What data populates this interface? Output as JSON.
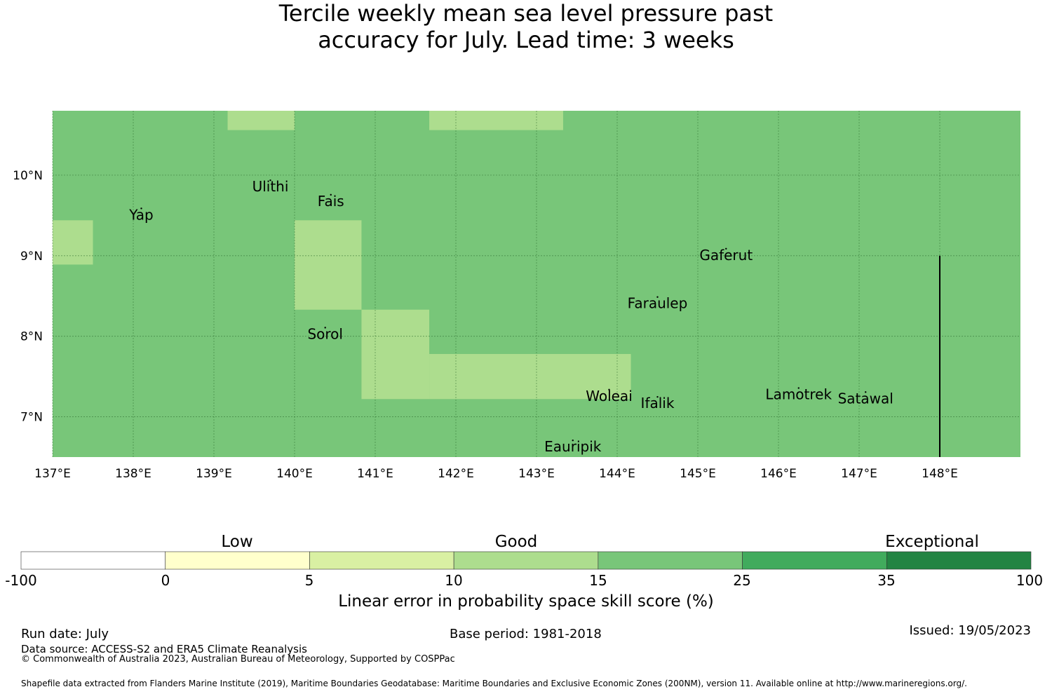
{
  "title_lines": [
    "Tercile weekly mean sea level pressure past",
    "accuracy for July. Lead time: 3 weeks"
  ],
  "map": {
    "lat_labels": [
      "10°N",
      "9°N",
      "8°N",
      "7°N"
    ],
    "lon_labels": [
      "137°E",
      "138°E",
      "139°E",
      "140°E",
      "141°E",
      "142°E",
      "143°E",
      "144°E",
      "145°E",
      "146°E",
      "147°E",
      "148°E"
    ],
    "extent": {
      "lon_min": 137.0,
      "lon_max": 149.0,
      "lat_min": 6.5,
      "lat_max": 10.8
    },
    "gridlines_lon": [
      137,
      138,
      139,
      140,
      141,
      142,
      143,
      144,
      145,
      146,
      147,
      148
    ],
    "gridlines_lat": [
      7,
      8,
      9,
      10
    ],
    "base_color": "#78c679",
    "patch_color": "#addd8e",
    "grid_color": "#2b6a2b",
    "patches": [
      {
        "lon": [
          139.17,
          140.0
        ],
        "lat": [
          10.56,
          10.8
        ]
      },
      {
        "lon": [
          141.67,
          143.33
        ],
        "lat": [
          10.56,
          10.8
        ]
      },
      {
        "lon": [
          137.0,
          137.5
        ],
        "lat": [
          8.89,
          9.44
        ]
      },
      {
        "lon": [
          140.0,
          140.83
        ],
        "lat": [
          8.33,
          9.44
        ]
      },
      {
        "lon": [
          140.83,
          141.67
        ],
        "lat": [
          7.22,
          8.33
        ]
      },
      {
        "lon": [
          141.67,
          144.17
        ],
        "lat": [
          7.22,
          7.78
        ]
      }
    ],
    "boundary_line": {
      "lon": 148.0,
      "lat": [
        6.5,
        9.0
      ]
    },
    "islands": [
      {
        "name": "Yap",
        "lon": 138.1,
        "lat": 9.5
      },
      {
        "name": "Ulithi",
        "lon": 139.7,
        "lat": 9.85
      },
      {
        "name": "Fais",
        "lon": 140.45,
        "lat": 9.67
      },
      {
        "name": "Gaferut",
        "lon": 145.35,
        "lat": 9.0
      },
      {
        "name": "Faraulep",
        "lon": 144.5,
        "lat": 8.4
      },
      {
        "name": "Sorol",
        "lon": 140.38,
        "lat": 8.02
      },
      {
        "name": "Woleai",
        "lon": 143.9,
        "lat": 7.25
      },
      {
        "name": "Ifalik",
        "lon": 144.5,
        "lat": 7.16
      },
      {
        "name": "Lamotrek",
        "lon": 146.25,
        "lat": 7.27
      },
      {
        "name": "Satawal",
        "lon": 147.08,
        "lat": 7.22
      },
      {
        "name": "Eauripik",
        "lon": 143.45,
        "lat": 6.62
      }
    ]
  },
  "colorbar": {
    "categories": [
      "Low",
      "Good",
      "Exceptional"
    ],
    "tick_labels": [
      "-100",
      "0",
      "5",
      "10",
      "15",
      "25",
      "35",
      "100"
    ],
    "colors": [
      "#ffffff",
      "#ffffcc",
      "#d9f0a3",
      "#addd8e",
      "#78c679",
      "#41ab5d",
      "#238443"
    ],
    "label": "Linear error in probability space skill score (%)"
  },
  "footer": {
    "run_date": "Run date: July",
    "base_period": "Base period: 1981-2018",
    "issued": "Issued: 19/05/2023",
    "data_source": "Data source: ACCESS-S2 and ERA5 Climate Reanalysis",
    "copyright": "© Commonwealth of Australia 2023, Australian Bureau of Meteorology, Supported by COSPPac",
    "shapefile": "Shapefile data extracted from Flanders Marine Institute (2019), Maritime Boundaries Geodatabase: Maritime Boundaries and Exclusive Economic Zones (200NM), version 11. Available online at http://www.marineregions.org/."
  }
}
